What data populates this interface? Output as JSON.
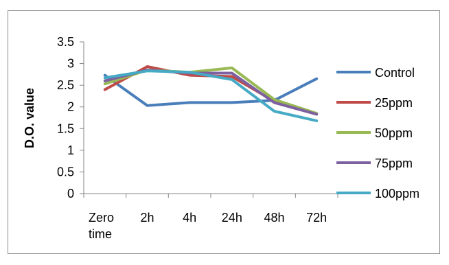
{
  "chart_data": {
    "type": "line",
    "title": "",
    "xlabel": "",
    "ylabel": "D.O. value",
    "categories": [
      [
        "Zero",
        "time"
      ],
      [
        "2h"
      ],
      [
        "4h"
      ],
      [
        "24h"
      ],
      [
        "48h"
      ],
      [
        "72h"
      ]
    ],
    "ylim": [
      0,
      3.5
    ],
    "yticks": [
      "0",
      "0.5",
      "1",
      "1.5",
      "2",
      "2.5",
      "3",
      "3.5"
    ],
    "grid": false,
    "legend_position": "right",
    "series": [
      {
        "name": "Control",
        "color": "#4a7ebb",
        "values": [
          2.73,
          2.03,
          2.1,
          2.1,
          2.15,
          2.65
        ]
      },
      {
        "name": "25ppm",
        "color": "#be4b48",
        "values": [
          2.4,
          2.93,
          2.73,
          2.7,
          2.13,
          1.83
        ]
      },
      {
        "name": "50ppm",
        "color": "#98b954",
        "values": [
          2.53,
          2.85,
          2.8,
          2.9,
          2.17,
          1.85
        ]
      },
      {
        "name": "75ppm",
        "color": "#7d60a0",
        "values": [
          2.6,
          2.85,
          2.78,
          2.78,
          2.1,
          1.83
        ]
      },
      {
        "name": "100ppm",
        "color": "#46aac5",
        "values": [
          2.67,
          2.83,
          2.8,
          2.63,
          1.9,
          1.68
        ]
      }
    ]
  }
}
